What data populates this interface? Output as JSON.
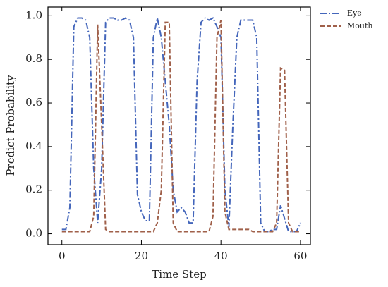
{
  "chart_data": {
    "type": "line",
    "xlabel": "Time Step",
    "ylabel": "Predict Probability",
    "x": [
      0,
      1,
      2,
      3,
      4,
      5,
      6,
      7,
      8,
      9,
      10,
      11,
      12,
      13,
      14,
      15,
      16,
      17,
      18,
      19,
      20,
      21,
      22,
      23,
      24,
      25,
      26,
      27,
      28,
      29,
      30,
      31,
      32,
      33,
      34,
      35,
      36,
      37,
      38,
      39,
      40,
      41,
      42,
      43,
      44,
      45,
      46,
      47,
      48,
      49,
      50,
      51,
      52,
      53,
      54,
      55,
      56,
      57,
      58,
      59,
      60
    ],
    "series": [
      {
        "name": "Eye",
        "color": "#4466bb",
        "dash": "dashdot",
        "values": [
          0.02,
          0.02,
          0.12,
          0.95,
          0.99,
          0.99,
          0.98,
          0.9,
          0.3,
          0.05,
          0.3,
          0.97,
          0.99,
          0.99,
          0.98,
          0.98,
          0.99,
          0.98,
          0.9,
          0.18,
          0.1,
          0.06,
          0.06,
          0.9,
          0.99,
          0.9,
          0.7,
          0.5,
          0.2,
          0.1,
          0.12,
          0.1,
          0.05,
          0.05,
          0.7,
          0.97,
          0.99,
          0.98,
          0.99,
          0.95,
          0.9,
          0.2,
          0.03,
          0.5,
          0.9,
          0.98,
          0.98,
          0.98,
          0.98,
          0.9,
          0.05,
          0.01,
          0.01,
          0.02,
          0.02,
          0.13,
          0.07,
          0.01,
          0.01,
          0.01,
          0.05
        ]
      },
      {
        "name": "Mouth",
        "color": "#a0604a",
        "dash": "dashed",
        "values": [
          0.01,
          0.01,
          0.01,
          0.01,
          0.01,
          0.01,
          0.01,
          0.01,
          0.08,
          0.96,
          0.5,
          0.02,
          0.01,
          0.01,
          0.01,
          0.01,
          0.01,
          0.01,
          0.01,
          0.01,
          0.01,
          0.01,
          0.01,
          0.01,
          0.05,
          0.2,
          0.97,
          0.97,
          0.05,
          0.01,
          0.01,
          0.01,
          0.01,
          0.01,
          0.01,
          0.01,
          0.01,
          0.01,
          0.08,
          0.9,
          0.98,
          0.1,
          0.02,
          0.02,
          0.02,
          0.02,
          0.02,
          0.02,
          0.01,
          0.01,
          0.01,
          0.01,
          0.01,
          0.01,
          0.05,
          0.76,
          0.75,
          0.05,
          0.01,
          0.01,
          0.01
        ]
      }
    ],
    "xlim": [
      -3.5,
      62.5
    ],
    "ylim": [
      -0.05,
      1.04
    ],
    "xticks": [
      0,
      20,
      40,
      60
    ],
    "yticks": [
      {
        "value": 0,
        "label": "0.0"
      },
      0.2,
      0.4,
      0.6,
      0.8,
      {
        "value": 1,
        "label": "1.0"
      }
    ],
    "legend": "outside-upper-right"
  }
}
